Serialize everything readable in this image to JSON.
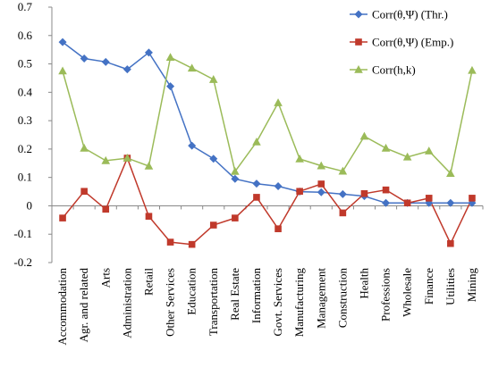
{
  "chart_data": {
    "type": "line",
    "categories": [
      "Accommodation",
      "Agr. and related",
      "Arts",
      "Administration",
      "Retail",
      "Other Services",
      "Education",
      "Transportation",
      "Real Estate",
      "Information",
      "Govt. Services",
      "Manufacturing",
      "Management",
      "Construction",
      "Health",
      "Professions",
      "Wholesale",
      "Finance",
      "Utilities",
      "Mining"
    ],
    "series": [
      {
        "name": "Corr(θ,Ψ) (Thr.)",
        "color": "#4472C4",
        "marker": "diamond",
        "values": [
          0.577,
          0.519,
          0.507,
          0.481,
          0.54,
          0.421,
          0.212,
          0.166,
          0.095,
          0.078,
          0.069,
          0.05,
          0.048,
          0.041,
          0.034,
          0.01,
          0.01,
          0.01,
          0.01,
          0.01
        ]
      },
      {
        "name": "Corr(θ,Ψ) (Emp.)",
        "color": "#C0392B",
        "marker": "square",
        "values": [
          -0.043,
          0.051,
          -0.012,
          0.168,
          -0.037,
          -0.128,
          -0.136,
          -0.068,
          -0.043,
          0.03,
          -0.081,
          0.051,
          0.077,
          -0.025,
          0.043,
          0.056,
          0.01,
          0.027,
          -0.133,
          0.027
        ]
      },
      {
        "name": "Corr(h,k)",
        "color": "#9BBB59",
        "marker": "triangle",
        "values": [
          0.475,
          0.203,
          0.159,
          0.168,
          0.14,
          0.523,
          0.485,
          0.445,
          0.121,
          0.225,
          0.363,
          0.165,
          0.141,
          0.122,
          0.245,
          0.203,
          0.172,
          0.193,
          0.114,
          0.477
        ]
      }
    ],
    "ylim": [
      -0.2,
      0.7
    ],
    "yticks": [
      "-0.2",
      "-0.1",
      "0",
      "0.1",
      "0.2",
      "0.3",
      "0.4",
      "0.5",
      "0.6",
      "0.7"
    ],
    "grid": false,
    "legend": "top-right",
    "title": "",
    "xlabel": "",
    "ylabel": ""
  }
}
